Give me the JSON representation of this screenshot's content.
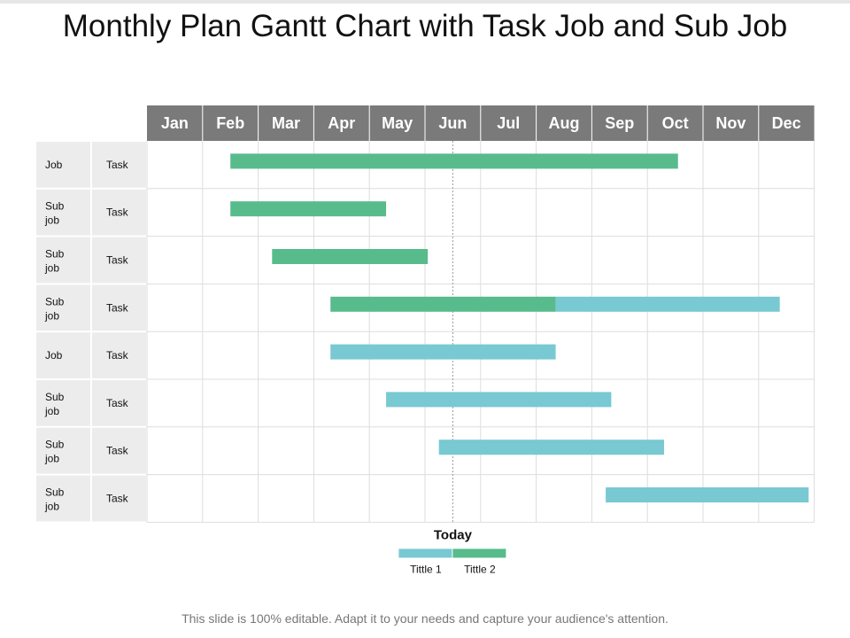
{
  "page": {
    "title": "Monthly Plan Gantt Chart with Task Job and Sub Job",
    "footer": "This slide is 100% editable. Adapt it to your needs and capture your audience's attention."
  },
  "chart_data": {
    "type": "gantt",
    "title": "Monthly Plan Gantt Chart with Task Job and Sub Job",
    "months": [
      "Jan",
      "Feb",
      "Mar",
      "Apr",
      "May",
      "Jun",
      "Jul",
      "Aug",
      "Sep",
      "Oct",
      "Nov",
      "Dec"
    ],
    "today_label": "Today",
    "today": 6.5,
    "legend": [
      {
        "name": "Tittle 1",
        "color": "#78c9d2"
      },
      {
        "name": "Tittle 2",
        "color": "#58bb8c"
      }
    ],
    "series_colors": {
      "Tittle 1": "#78c9d2",
      "Tittle 2": "#58bb8c"
    },
    "rows": [
      {
        "category": "Job",
        "task": "Task",
        "bars": [
          {
            "series": "Tittle 2",
            "start": 2.5,
            "end": 10.55
          }
        ]
      },
      {
        "category": "Sub job",
        "task": "Task",
        "bars": [
          {
            "series": "Tittle 2",
            "start": 2.5,
            "end": 5.3
          }
        ]
      },
      {
        "category": "Sub job",
        "task": "Task",
        "bars": [
          {
            "series": "Tittle 2",
            "start": 3.25,
            "end": 6.05
          }
        ]
      },
      {
        "category": "Sub job",
        "task": "Task",
        "bars": [
          {
            "series": "Tittle 2",
            "start": 4.3,
            "end": 8.35
          },
          {
            "series": "Tittle 1",
            "start": 8.35,
            "end": 12.38
          }
        ]
      },
      {
        "category": "Job",
        "task": "Task",
        "bars": [
          {
            "series": "Tittle 1",
            "start": 4.3,
            "end": 8.35
          }
        ]
      },
      {
        "category": "Sub job",
        "task": "Task",
        "bars": [
          {
            "series": "Tittle 1",
            "start": 5.3,
            "end": 9.35
          }
        ]
      },
      {
        "category": "Sub job",
        "task": "Task",
        "bars": [
          {
            "series": "Tittle 1",
            "start": 6.25,
            "end": 10.3
          }
        ]
      },
      {
        "category": "Sub job",
        "task": "Task",
        "bars": [
          {
            "series": "Tittle 1",
            "start": 9.25,
            "end": 12.9
          }
        ]
      }
    ]
  }
}
